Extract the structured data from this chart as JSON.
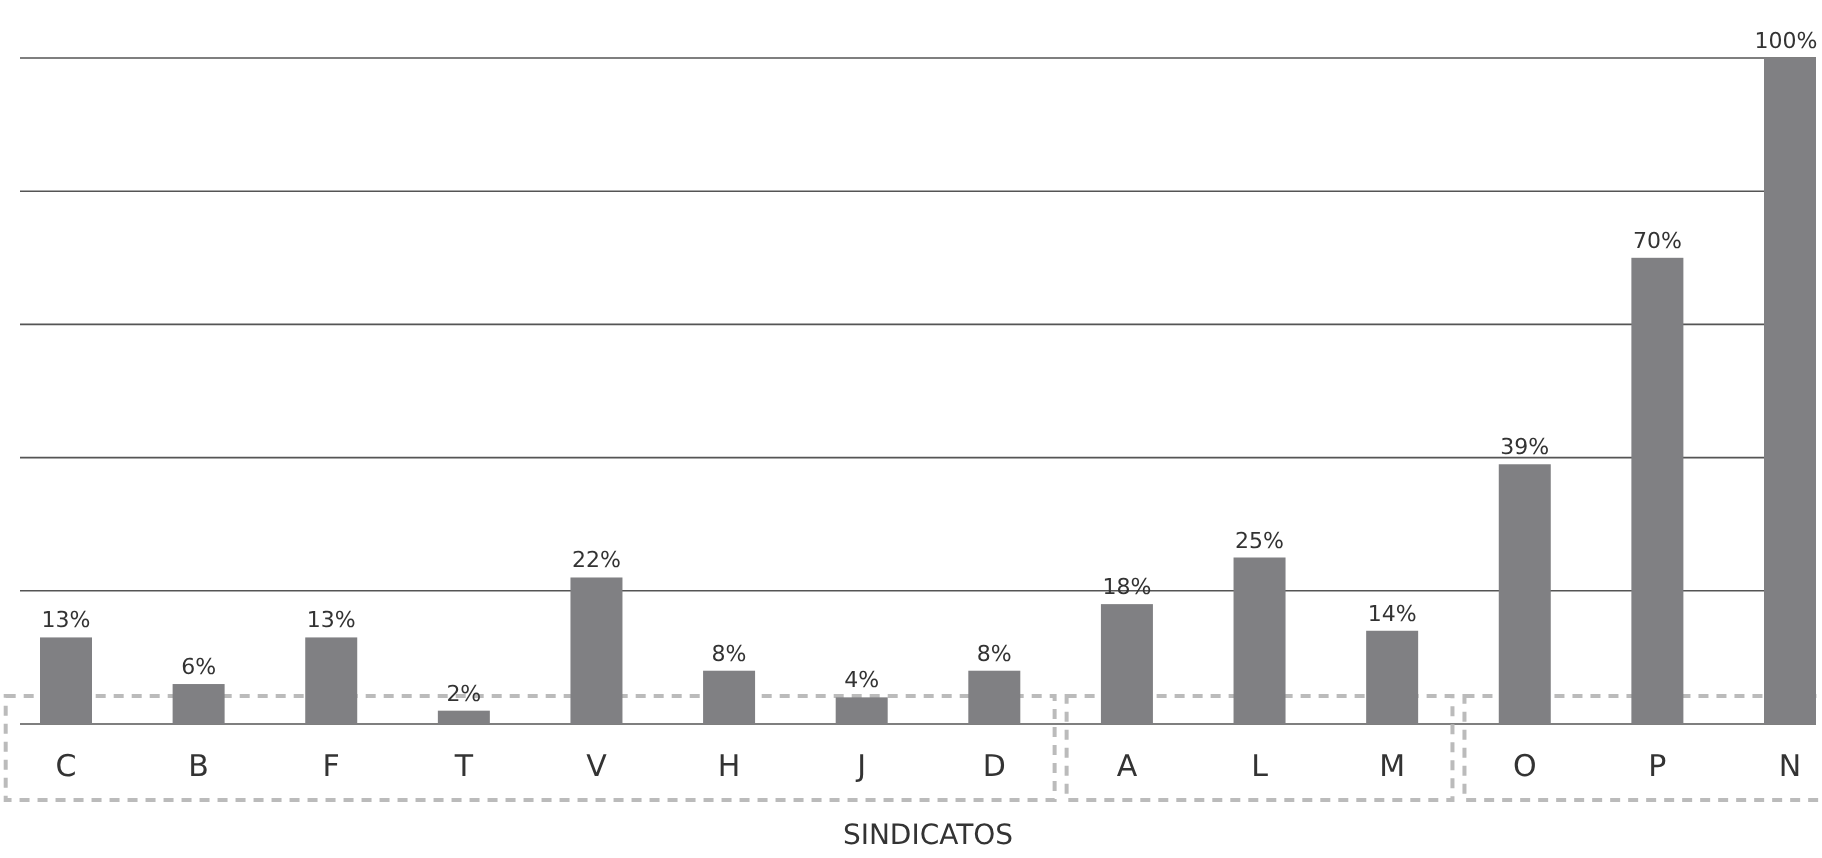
{
  "chart_data": {
    "type": "bar",
    "xlabel": "SINDICATOS",
    "categories": [
      "C",
      "B",
      "F",
      "T",
      "V",
      "H",
      "J",
      "D",
      "A",
      "L",
      "M",
      "O",
      "P",
      "N"
    ],
    "values": [
      13,
      6,
      13,
      2,
      22,
      8,
      4,
      8,
      18,
      25,
      14,
      39,
      70,
      100
    ],
    "color": "#808083",
    "data_labels": true,
    "value_labels": [
      "13%",
      "6%",
      "13%",
      "2%",
      "22%",
      "8%",
      "4%",
      "8%",
      "18%",
      "25%",
      "14%",
      "39%",
      "70%",
      "100%"
    ],
    "ylim": [
      0,
      100
    ],
    "yticks": [
      {
        "value": 0,
        "label": null
      },
      {
        "value": 20,
        "label": null
      },
      {
        "value": 40,
        "label": null
      },
      {
        "value": 60,
        "label": null
      },
      {
        "value": 80,
        "label": null
      },
      {
        "value": 100,
        "label": null
      }
    ],
    "grid": "y",
    "tick_labels": "x"
  }
}
